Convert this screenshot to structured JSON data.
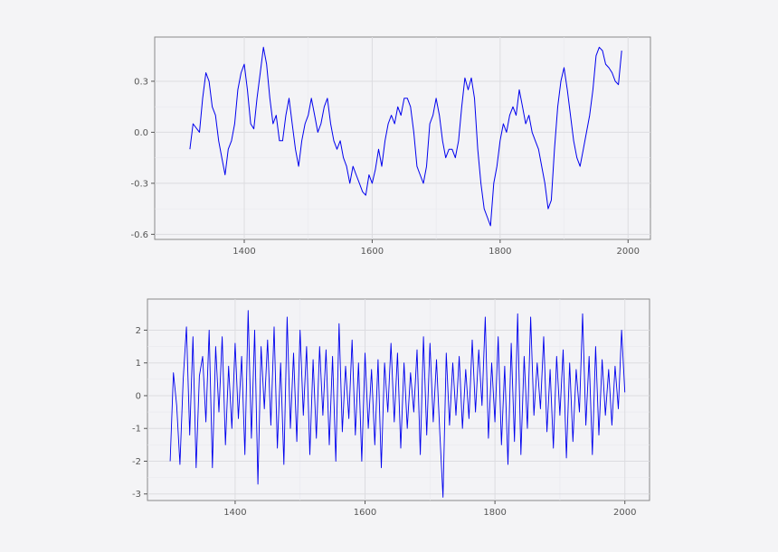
{
  "colors": {
    "series": "#0000ee",
    "background": "#f4f4f6",
    "panel": "#f3f3f6",
    "grid": "#dcdce0"
  },
  "chart_data": [
    {
      "type": "line",
      "title": "",
      "xlabel": "",
      "ylabel": "",
      "grid": true,
      "xlim": [
        1260,
        2035
      ],
      "ylim": [
        -0.63,
        0.56
      ],
      "xticks": [
        1400,
        1600,
        1800,
        2000
      ],
      "xtick_labels": [
        "1400",
        "1600",
        "1800",
        "2000"
      ],
      "yticks": [
        0.3,
        0.0,
        -0.3,
        -0.6
      ],
      "ytick_labels": [
        "0.3",
        "0.0",
        "-0.3",
        "-0.6"
      ],
      "series": [
        {
          "x": [
            1315,
            1320,
            1330,
            1335,
            1340,
            1345,
            1350,
            1355,
            1360,
            1365,
            1370,
            1375,
            1380,
            1385,
            1390,
            1395,
            1400,
            1405,
            1410,
            1415,
            1420,
            1425,
            1430,
            1435,
            1440,
            1445,
            1450,
            1455,
            1460,
            1465,
            1470,
            1475,
            1480,
            1485,
            1490,
            1495,
            1500,
            1505,
            1510,
            1515,
            1520,
            1525,
            1530,
            1535,
            1540,
            1545,
            1550,
            1555,
            1560,
            1565,
            1570,
            1575,
            1580,
            1585,
            1590,
            1595,
            1600,
            1605,
            1610,
            1615,
            1620,
            1625,
            1630,
            1635,
            1640,
            1645,
            1650,
            1655,
            1660,
            1665,
            1670,
            1675,
            1680,
            1685,
            1690,
            1695,
            1700,
            1705,
            1710,
            1715,
            1720,
            1725,
            1730,
            1735,
            1740,
            1745,
            1750,
            1755,
            1760,
            1765,
            1770,
            1775,
            1780,
            1785,
            1790,
            1795,
            1800,
            1805,
            1810,
            1815,
            1820,
            1825,
            1830,
            1835,
            1840,
            1845,
            1850,
            1855,
            1860,
            1865,
            1870,
            1875,
            1880,
            1885,
            1890,
            1895,
            1900,
            1905,
            1910,
            1915,
            1920,
            1925,
            1930,
            1935,
            1940,
            1945,
            1950,
            1955,
            1960,
            1965,
            1970,
            1975,
            1980,
            1985,
            1990
          ],
          "y": [
            -0.1,
            0.05,
            0.0,
            0.2,
            0.35,
            0.3,
            0.15,
            0.1,
            -0.05,
            -0.15,
            -0.25,
            -0.1,
            -0.05,
            0.05,
            0.25,
            0.35,
            0.4,
            0.25,
            0.05,
            0.02,
            0.2,
            0.35,
            0.5,
            0.4,
            0.2,
            0.05,
            0.1,
            -0.05,
            -0.05,
            0.1,
            0.2,
            0.05,
            -0.1,
            -0.2,
            -0.05,
            0.05,
            0.1,
            0.2,
            0.1,
            0.0,
            0.05,
            0.15,
            0.2,
            0.05,
            -0.05,
            -0.1,
            -0.05,
            -0.15,
            -0.2,
            -0.3,
            -0.2,
            -0.25,
            -0.3,
            -0.35,
            -0.37,
            -0.25,
            -0.3,
            -0.22,
            -0.1,
            -0.2,
            -0.05,
            0.05,
            0.1,
            0.05,
            0.15,
            0.1,
            0.2,
            0.2,
            0.15,
            0.0,
            -0.2,
            -0.25,
            -0.3,
            -0.2,
            0.05,
            0.1,
            0.2,
            0.1,
            -0.05,
            -0.15,
            -0.1,
            -0.1,
            -0.15,
            -0.05,
            0.15,
            0.32,
            0.25,
            0.32,
            0.2,
            -0.1,
            -0.3,
            -0.45,
            -0.5,
            -0.55,
            -0.3,
            -0.2,
            -0.05,
            0.05,
            0.0,
            0.1,
            0.15,
            0.1,
            0.25,
            0.15,
            0.05,
            0.1,
            0.0,
            -0.05,
            -0.1,
            -0.2,
            -0.3,
            -0.45,
            -0.4,
            -0.1,
            0.15,
            0.3,
            0.38,
            0.25,
            0.1,
            -0.05,
            -0.15,
            -0.2,
            -0.1,
            0.0,
            0.1,
            0.25,
            0.45,
            0.5,
            0.48,
            0.4,
            0.38,
            0.35,
            0.3,
            0.28,
            0.48
          ],
          "line_width": 1
        }
      ]
    },
    {
      "type": "line",
      "title": "",
      "xlabel": "",
      "ylabel": "",
      "grid": true,
      "xlim": [
        1265,
        2038
      ],
      "ylim": [
        -3.2,
        2.95
      ],
      "xticks": [
        1400,
        1600,
        1800,
        2000
      ],
      "xtick_labels": [
        "1400",
        "1600",
        "1800",
        "2000"
      ],
      "yticks": [
        2,
        1,
        0,
        -1,
        -2,
        -3
      ],
      "ytick_labels": [
        "2",
        "1",
        "0",
        "-1",
        "-2",
        "-3"
      ],
      "series": [
        {
          "x": [
            1300,
            1305,
            1310,
            1315,
            1320,
            1325,
            1330,
            1335,
            1340,
            1345,
            1350,
            1355,
            1360,
            1365,
            1370,
            1375,
            1380,
            1385,
            1390,
            1395,
            1400,
            1405,
            1410,
            1415,
            1420,
            1425,
            1430,
            1435,
            1440,
            1445,
            1450,
            1455,
            1460,
            1465,
            1470,
            1475,
            1480,
            1485,
            1490,
            1495,
            1500,
            1505,
            1510,
            1515,
            1520,
            1525,
            1530,
            1535,
            1540,
            1545,
            1550,
            1555,
            1560,
            1565,
            1570,
            1575,
            1580,
            1585,
            1590,
            1595,
            1600,
            1605,
            1610,
            1615,
            1620,
            1625,
            1630,
            1635,
            1640,
            1645,
            1650,
            1655,
            1660,
            1665,
            1670,
            1675,
            1680,
            1685,
            1690,
            1695,
            1700,
            1705,
            1710,
            1715,
            1720,
            1725,
            1730,
            1735,
            1740,
            1745,
            1750,
            1755,
            1760,
            1765,
            1770,
            1775,
            1780,
            1785,
            1790,
            1795,
            1800,
            1805,
            1810,
            1815,
            1820,
            1825,
            1830,
            1835,
            1840,
            1845,
            1850,
            1855,
            1860,
            1865,
            1870,
            1875,
            1880,
            1885,
            1890,
            1895,
            1900,
            1905,
            1910,
            1915,
            1920,
            1925,
            1930,
            1935,
            1940,
            1945,
            1950,
            1955,
            1960,
            1965,
            1970,
            1975,
            1980,
            1985,
            1990,
            1995,
            2000
          ],
          "y": [
            -2.0,
            0.7,
            -0.3,
            -2.1,
            0.5,
            2.1,
            -1.2,
            1.8,
            -2.2,
            0.6,
            1.2,
            -0.8,
            2.0,
            -2.2,
            1.5,
            -0.5,
            1.8,
            -1.5,
            0.9,
            -1.0,
            1.6,
            -0.7,
            1.2,
            -1.8,
            2.6,
            -1.3,
            2.0,
            -2.7,
            1.5,
            -0.4,
            1.7,
            -0.9,
            2.1,
            -1.6,
            1.0,
            -2.1,
            2.4,
            -1.0,
            1.3,
            -1.4,
            2.0,
            -0.6,
            1.5,
            -1.8,
            1.1,
            -1.3,
            1.5,
            -0.6,
            1.4,
            -1.5,
            1.2,
            -2.0,
            2.2,
            -1.1,
            0.9,
            -0.7,
            1.7,
            -1.2,
            1.0,
            -2.0,
            1.3,
            -1.0,
            0.8,
            -1.5,
            1.1,
            -2.2,
            1.0,
            -0.5,
            1.6,
            -0.8,
            1.3,
            -1.6,
            1.0,
            -1.0,
            0.7,
            -0.5,
            1.4,
            -1.8,
            1.8,
            -1.2,
            1.6,
            -0.8,
            1.1,
            -1.1,
            -3.1,
            1.3,
            -0.9,
            1.0,
            -0.6,
            1.2,
            -1.0,
            0.8,
            -0.7,
            1.7,
            -0.5,
            1.4,
            -0.3,
            2.4,
            -1.3,
            1.0,
            -0.8,
            1.8,
            -1.5,
            0.9,
            -2.1,
            1.6,
            -1.4,
            2.5,
            -1.8,
            1.2,
            -1.0,
            2.4,
            -0.6,
            1.0,
            -0.4,
            1.8,
            -1.1,
            0.8,
            -1.6,
            1.2,
            -0.6,
            1.4,
            -1.9,
            1.0,
            -1.4,
            0.8,
            -0.5,
            2.5,
            -0.9,
            1.2,
            -1.8,
            1.5,
            -1.2,
            1.1,
            -0.6,
            0.8,
            -0.9,
            0.9,
            -0.4,
            2.0,
            0.1
          ],
          "line_width": 0.9
        }
      ]
    }
  ]
}
